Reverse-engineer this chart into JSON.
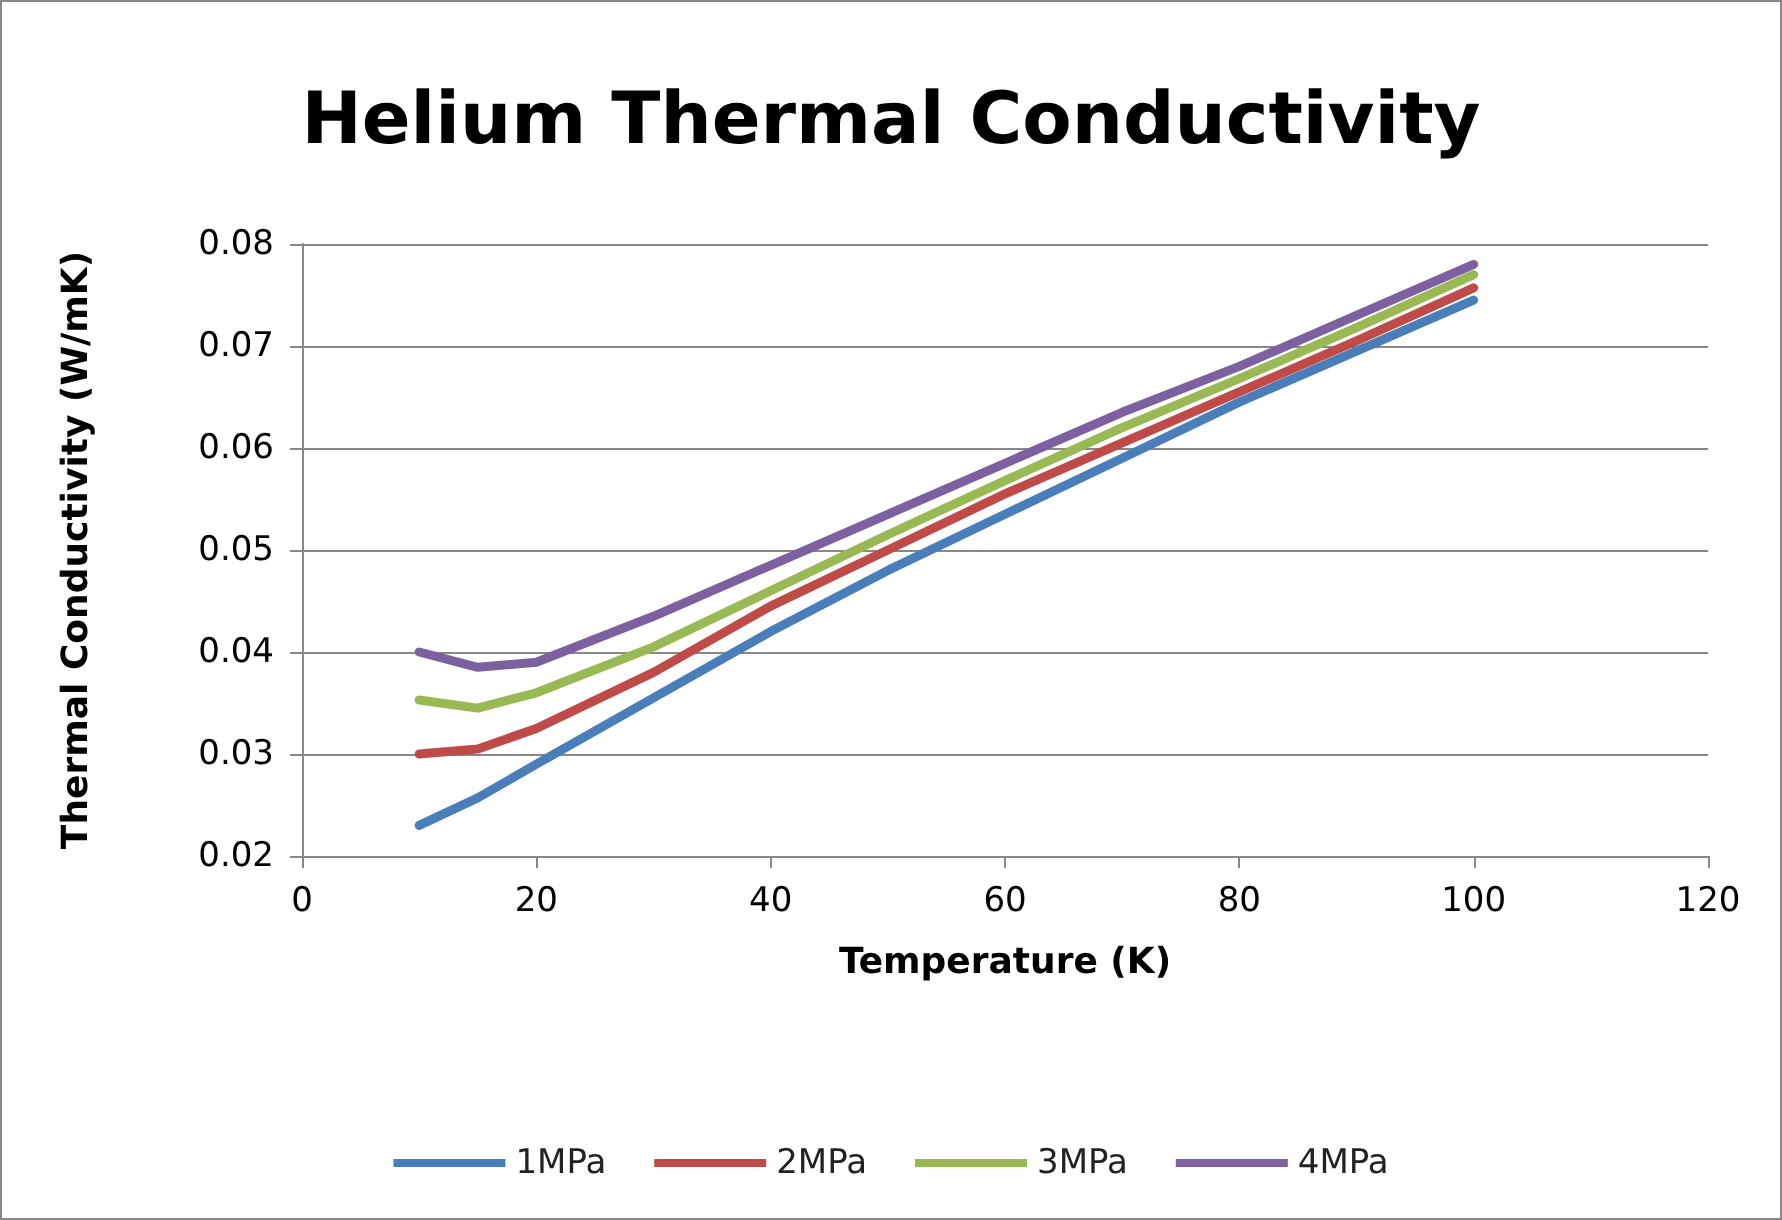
{
  "chart_data": {
    "type": "line",
    "title": "Helium Thermal Conductivity",
    "xlabel": "Temperature (K)",
    "ylabel": "Thermal Conductivity (W/mK)",
    "x": [
      10,
      15,
      20,
      30,
      40,
      50,
      60,
      70,
      80,
      90,
      100
    ],
    "series": [
      {
        "name": "1MPa",
        "color": "#4a7ebb",
        "values": [
          0.023,
          0.0257,
          0.029,
          0.0355,
          0.042,
          0.048,
          0.0535,
          0.059,
          0.0645,
          0.0695,
          0.0745
        ]
      },
      {
        "name": "2MPa",
        "color": "#be4b48",
        "values": [
          0.03,
          0.0305,
          0.0325,
          0.038,
          0.0445,
          0.05,
          0.0555,
          0.0605,
          0.0655,
          0.0705,
          0.0757
        ]
      },
      {
        "name": "3MPa",
        "color": "#98b954",
        "values": [
          0.0353,
          0.0345,
          0.036,
          0.0405,
          0.046,
          0.0515,
          0.0568,
          0.062,
          0.0668,
          0.0718,
          0.077
        ]
      },
      {
        "name": "4MPa",
        "color": "#7d60a0",
        "values": [
          0.04,
          0.0385,
          0.039,
          0.0435,
          0.0485,
          0.0535,
          0.0585,
          0.0635,
          0.068,
          0.073,
          0.078
        ]
      }
    ],
    "xlim": [
      0,
      120
    ],
    "xticks": [
      0,
      20,
      40,
      60,
      80,
      100,
      120
    ],
    "ylim": [
      0.02,
      0.08
    ],
    "yticks": [
      0.02,
      0.03,
      0.04,
      0.05,
      0.06,
      0.07,
      0.08
    ],
    "grid": "y",
    "legend": "bottom",
    "marker": "none",
    "line_style": "solid"
  }
}
